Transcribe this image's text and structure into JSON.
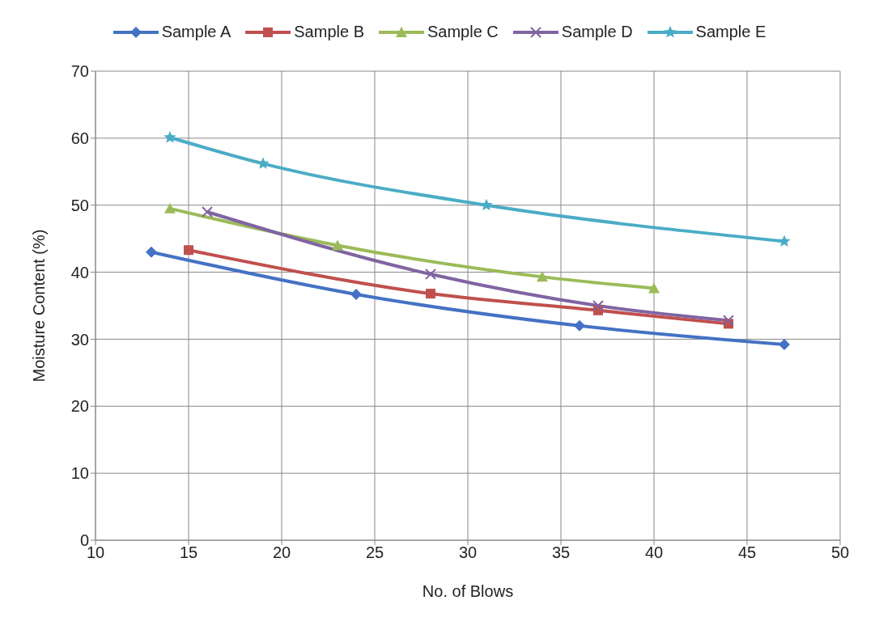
{
  "chart_data": {
    "type": "line",
    "xlabel": "No. of Blows",
    "ylabel": "Moisture Content (%)",
    "xlim": [
      10,
      50
    ],
    "xticks": [
      10,
      15,
      20,
      25,
      30,
      35,
      40,
      45,
      50
    ],
    "ylim": [
      0,
      70
    ],
    "yticks": [
      0,
      10,
      20,
      30,
      40,
      50,
      60,
      70
    ],
    "grid": true,
    "legend": "top",
    "series": [
      {
        "name": "Sample A",
        "color": "#4472c4",
        "marker": "diamond",
        "x": [
          13,
          24,
          36,
          47
        ],
        "values": [
          43.0,
          36.7,
          32.0,
          29.2
        ]
      },
      {
        "name": "Sample B",
        "color": "#c0504d",
        "marker": "square",
        "x": [
          15,
          28,
          37,
          44
        ],
        "values": [
          43.3,
          36.8,
          34.3,
          32.3
        ]
      },
      {
        "name": "Sample C",
        "color": "#9bbb59",
        "marker": "triangle",
        "x": [
          14,
          23,
          34,
          40
        ],
        "values": [
          49.5,
          44.0,
          39.3,
          37.6
        ]
      },
      {
        "name": "Sample D",
        "color": "#8064a2",
        "marker": "cross",
        "x": [
          16,
          28,
          37,
          44
        ],
        "values": [
          49.0,
          39.7,
          35.0,
          32.8
        ]
      },
      {
        "name": "Sample E",
        "color": "#4bacc6",
        "marker": "star",
        "x": [
          14,
          19,
          31,
          47
        ],
        "values": [
          60.1,
          56.2,
          50.0,
          44.6
        ]
      }
    ]
  }
}
